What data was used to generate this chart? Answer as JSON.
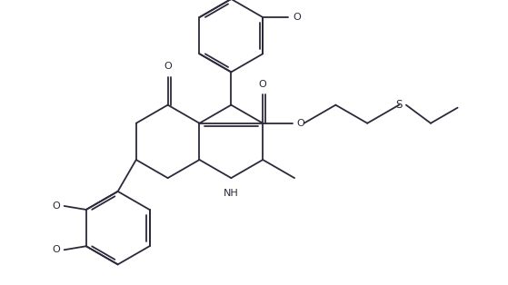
{
  "bg_color": "#ffffff",
  "line_color": "#2a2a3a",
  "line_width": 1.3,
  "font_size": 8.0,
  "figsize": [
    5.59,
    3.14
  ],
  "dpi": 100,
  "xlim": [
    0,
    10
  ],
  "ylim": [
    0,
    5.6
  ]
}
